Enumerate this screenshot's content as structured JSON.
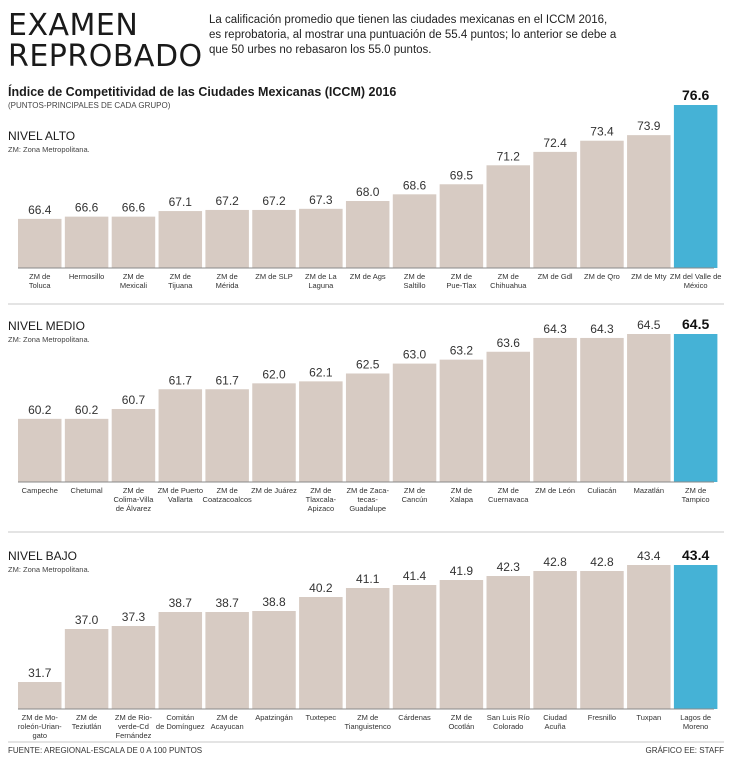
{
  "headline": {
    "line1": "EXAMEN",
    "line2": "REPROBADO"
  },
  "intro": "La calificación promedio que tienen las ciudades mexicanas en el ICCM 2016, es reprobatoria, al mostrar una puntuación de 55.4 puntos; lo anterior se debe a que 50 urbes no rebasaron los 55.0 puntos.",
  "chart_title": "Índice de Competitividad de las Ciudades Mexicanas (ICCM) 2016",
  "chart_subtitle": "(PUNTOS-PRINCIPALES DE CADA GRUPO)",
  "footer": {
    "source": "FUENTE: AREGIONAL-ESCALA DE 0 A 100 PUNTOS",
    "credit": "GRÁFICO EE: STAFF"
  },
  "colors": {
    "bar": "#d7cbc3",
    "highlight": "#45b2d6",
    "divider": "#c8c8c8",
    "baseline": "#8a8a8a"
  },
  "chart_data": [
    {
      "type": "bar",
      "title": "NIVEL ALTO",
      "note": "ZM: Zona Metropolitana.",
      "highlight_index": 14,
      "categories": [
        "ZM de Toluca",
        "Hermosillo",
        "ZM de Mexicali",
        "ZM de Tijuana",
        "ZM de Mérida",
        "ZM de SLP",
        "ZM de La Laguna",
        "ZM de Ags",
        "ZM de Saltillo",
        "ZM de Pue-Tlax",
        "ZM de Chihuahua",
        "ZM de Gdl",
        "ZM de Qro",
        "ZM de Mty",
        "ZM del Valle de México"
      ],
      "labels": [
        [
          "ZM de",
          "Toluca"
        ],
        [
          "Hermosillo"
        ],
        [
          "ZM de",
          "Mexicali"
        ],
        [
          "ZM de",
          "Tijuana"
        ],
        [
          "ZM de",
          "Mérida"
        ],
        [
          "ZM de SLP"
        ],
        [
          "ZM de La",
          "Laguna"
        ],
        [
          "ZM de Ags"
        ],
        [
          "ZM de",
          "Saltillo"
        ],
        [
          "ZM de",
          "Pue-Tlax"
        ],
        [
          "ZM de",
          "Chihuahua"
        ],
        [
          "ZM de Gdl"
        ],
        [
          "ZM de Qro"
        ],
        [
          "ZM de Mty"
        ],
        [
          "ZM del Valle de",
          "México"
        ]
      ],
      "values": [
        66.4,
        66.6,
        66.6,
        67.1,
        67.2,
        67.2,
        67.3,
        68.0,
        68.6,
        69.5,
        71.2,
        72.4,
        73.4,
        73.9,
        76.6
      ],
      "ylim": [
        62,
        76.6
      ]
    },
    {
      "type": "bar",
      "title": "NIVEL MEDIO",
      "note": "ZM: Zona Metropolitana.",
      "highlight_index": 14,
      "categories": [
        "Campeche",
        "Chetumal",
        "ZM de Colima-Villa de Álvarez",
        "ZM de Puerto Vallarta",
        "ZM de Coatzacoalcos",
        "ZM de Juárez",
        "ZM de Tlaxcala-Apizaco",
        "ZM de Zacatecas-Guadalupe",
        "ZM de Cancún",
        "ZM de Xalapa",
        "ZM de Cuernavaca",
        "ZM de León",
        "Culiacán",
        "Mazatlán",
        "ZM de Tampico"
      ],
      "labels": [
        [
          "Campeche"
        ],
        [
          "Chetumal"
        ],
        [
          "ZM de",
          "Colima-Villa",
          "de Álvarez"
        ],
        [
          "ZM de Puerto",
          "Vallarta"
        ],
        [
          "ZM de",
          "Coatzacoalcos"
        ],
        [
          "ZM de Juárez"
        ],
        [
          "ZM de",
          "Tlaxcala-",
          "Apizaco"
        ],
        [
          "ZM de Zaca-",
          "tecas-",
          "Guadalupe"
        ],
        [
          "ZM de",
          "Cancún"
        ],
        [
          "ZM de",
          "Xalapa"
        ],
        [
          "ZM de",
          "Cuernavaca"
        ],
        [
          "ZM de León"
        ],
        [
          "Culiacán"
        ],
        [
          "Mazatlán"
        ],
        [
          "ZM de",
          "Tampico"
        ]
      ],
      "values": [
        60.2,
        60.2,
        60.7,
        61.7,
        61.7,
        62.0,
        62.1,
        62.5,
        63.0,
        63.2,
        63.6,
        64.3,
        64.3,
        64.5,
        64.5
      ],
      "ylim": [
        57,
        64.5
      ]
    },
    {
      "type": "bar",
      "title": "NIVEL BAJO",
      "note": "ZM: Zona Metropolitana.",
      "highlight_index": 14,
      "categories": [
        "ZM de Moroleón-Uriangato",
        "ZM de Teziutlán",
        "ZM de Rioverde-Cd Fernández",
        "Comitán de Domínguez",
        "ZM de Acayucan",
        "Apatzingán",
        "Tuxtepec",
        "ZM de Tianguistenco",
        "Cárdenas",
        "ZM de Ocotlán",
        "San Luis Río Colorado",
        "Ciudad Acuña",
        "Fresnillo",
        "Tuxpan",
        "Lagos de Moreno"
      ],
      "labels": [
        [
          "ZM de Mo-",
          "roleón-Urian-",
          "gato"
        ],
        [
          "ZM de",
          "Teziutlán"
        ],
        [
          "ZM de Rio-",
          "verde-Cd",
          "Fernández"
        ],
        [
          "Comitán",
          "de Domínguez"
        ],
        [
          "ZM de",
          "Acayucan"
        ],
        [
          "Apatzingán"
        ],
        [
          "Tuxtepec"
        ],
        [
          "ZM de",
          "Tianguistenco"
        ],
        [
          "Cárdenas"
        ],
        [
          "ZM de",
          "Ocotlán"
        ],
        [
          "San Luis Río",
          "Colorado"
        ],
        [
          "Ciudad",
          "Acuña"
        ],
        [
          "Fresnillo"
        ],
        [
          "Tuxpan"
        ],
        [
          "Lagos de",
          "Moreno"
        ]
      ],
      "values": [
        31.7,
        37.0,
        37.3,
        38.7,
        38.7,
        38.8,
        40.2,
        41.1,
        41.4,
        41.9,
        42.3,
        42.8,
        42.8,
        43.4,
        43.4
      ],
      "ylim": [
        29,
        43.4
      ]
    }
  ]
}
